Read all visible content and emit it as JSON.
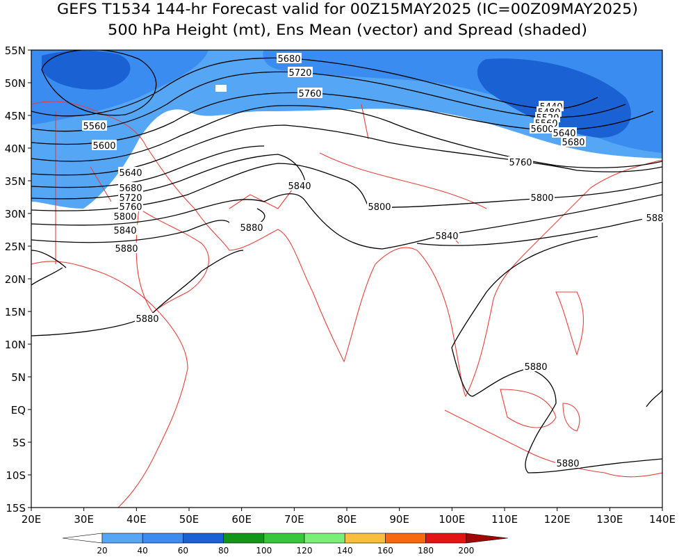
{
  "header": {
    "title": "GEFS T1534 144-hr Forecast valid for 00Z15MAY2025 (IC=00Z09MAY2025)",
    "subtitle": "500 hPa Height (mt), Ens Mean (vector) and Spread (shaded)"
  },
  "map": {
    "lat_labels": [
      "55N",
      "50N",
      "45N",
      "40N",
      "35N",
      "30N",
      "25N",
      "20N",
      "15N",
      "10N",
      "5N",
      "EQ",
      "5S",
      "10S",
      "15S"
    ],
    "lon_labels": [
      "20E",
      "30E",
      "40E",
      "50E",
      "60E",
      "70E",
      "80E",
      "90E",
      "100E",
      "110E",
      "120E",
      "130E",
      "140E"
    ],
    "contour_labels": [
      "5680",
      "5720",
      "5760",
      "5560",
      "5600",
      "5640",
      "5680",
      "5720",
      "5760",
      "5800",
      "5840",
      "5880",
      "5880",
      "5840",
      "5800",
      "5760",
      "5800",
      "5840",
      "588",
      "5880",
      "5880",
      "5880",
      "5440",
      "5480",
      "5520",
      "5560",
      "5600",
      "5640",
      "5680"
    ]
  },
  "colorbar": {
    "labels": [
      "20",
      "40",
      "60",
      "80",
      "100",
      "120",
      "140",
      "160",
      "180",
      "200"
    ],
    "colors": [
      "#ffffff",
      "#55a7f5",
      "#3a8cf0",
      "#1a62d4",
      "#12961a",
      "#36c83a",
      "#78ef78",
      "#f8be3e",
      "#f8680c",
      "#e21414",
      "#a00808"
    ]
  }
}
